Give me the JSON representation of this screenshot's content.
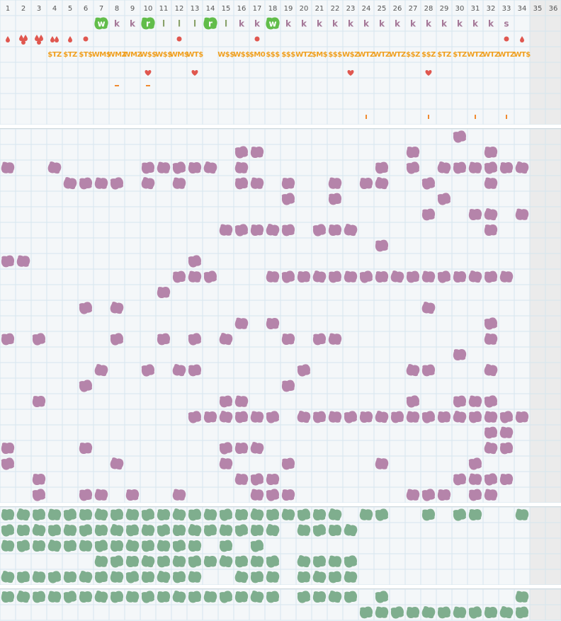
{
  "header": {
    "columns": [
      1,
      2,
      3,
      4,
      5,
      6,
      7,
      8,
      9,
      10,
      11,
      12,
      13,
      14,
      15,
      16,
      17,
      18,
      19,
      20,
      21,
      22,
      23,
      24,
      25,
      26,
      27,
      28,
      29,
      30,
      31,
      32,
      33,
      34,
      35,
      36
    ]
  },
  "rows": {
    "letters": [
      null,
      null,
      null,
      null,
      null,
      null,
      "w",
      "k",
      "k",
      "r",
      "l",
      "l",
      "l",
      "r",
      "l",
      "k",
      "k",
      "w",
      "k",
      "k",
      "k",
      "k",
      "k",
      "k",
      "k",
      "k",
      "k",
      "k",
      "k",
      "k",
      "k",
      "k",
      "s",
      null,
      null,
      null
    ],
    "codes": [
      null,
      null,
      null,
      "$TZ",
      "$TZ",
      "$T$",
      "WM$",
      "WMZ",
      "WMZ",
      "W$$",
      "W$$",
      "WM$",
      "WT$",
      null,
      "W$$",
      "W$$",
      "$M0",
      "$$$",
      "$$$",
      "WTZ",
      "$M$",
      "$$$",
      "W$Z",
      "WTZ",
      "WTZ",
      "WTZ",
      "$$Z",
      "$$Z",
      "$TZ",
      "$TZ",
      "WTZ",
      "WTZ",
      "WTZ",
      "WT$",
      null,
      null
    ]
  }
}
